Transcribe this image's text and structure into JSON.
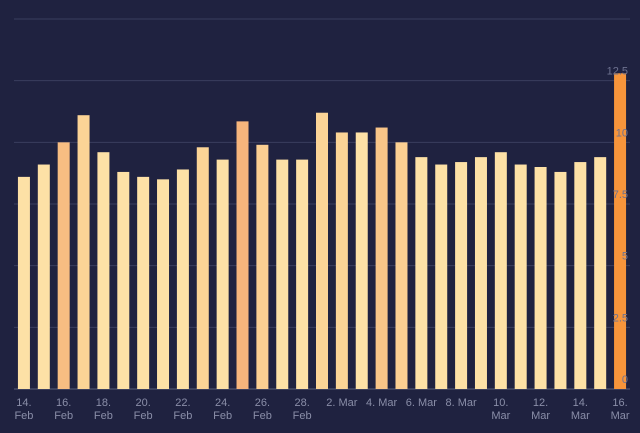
{
  "chart_data": {
    "type": "bar",
    "categories": [
      "14. Feb",
      null,
      "16. Feb",
      null,
      "18. Feb",
      null,
      "20. Feb",
      null,
      "22. Feb",
      null,
      "24. Feb",
      null,
      "26. Feb",
      null,
      "28. Feb",
      null,
      "2. Mar",
      null,
      "4. Mar",
      null,
      "6. Mar",
      null,
      "8. Mar",
      null,
      "10. Mar",
      null,
      "12. Mar",
      null,
      "14. Mar",
      null,
      "16. Mar"
    ],
    "values": [
      8.6,
      9.1,
      10.0,
      11.1,
      9.6,
      8.8,
      8.6,
      8.5,
      8.9,
      9.8,
      9.3,
      10.85,
      9.9,
      9.3,
      9.3,
      11.2,
      10.4,
      10.4,
      10.6,
      10.0,
      9.4,
      9.1,
      9.2,
      9.4,
      9.6,
      9.1,
      9.0,
      8.8,
      9.2,
      9.4,
      12.8
    ],
    "colors": [
      "#fde1a6",
      "#fde1a6",
      "#f7bd82",
      "#fbd496",
      "#fde1a6",
      "#fde1a6",
      "#fde1a6",
      "#fde1a6",
      "#fde1a6",
      "#fbd496",
      "#fde1a6",
      "#f6b57c",
      "#fbcf92",
      "#fde1a6",
      "#fde1a6",
      "#fbd496",
      "#fbd496",
      "#fde1a6",
      "#f8c588",
      "#fbcf92",
      "#fde1a6",
      "#fde1a6",
      "#fde1a6",
      "#fde1a6",
      "#fde1a6",
      "#fde1a6",
      "#fde1a6",
      "#fde1a6",
      "#fde1a6",
      "#fde1a6",
      "#f7953b"
    ],
    "ylim": [
      0,
      15
    ],
    "yticks": [
      0,
      2.5,
      5,
      7.5,
      10,
      12.5
    ],
    "grid": true
  }
}
